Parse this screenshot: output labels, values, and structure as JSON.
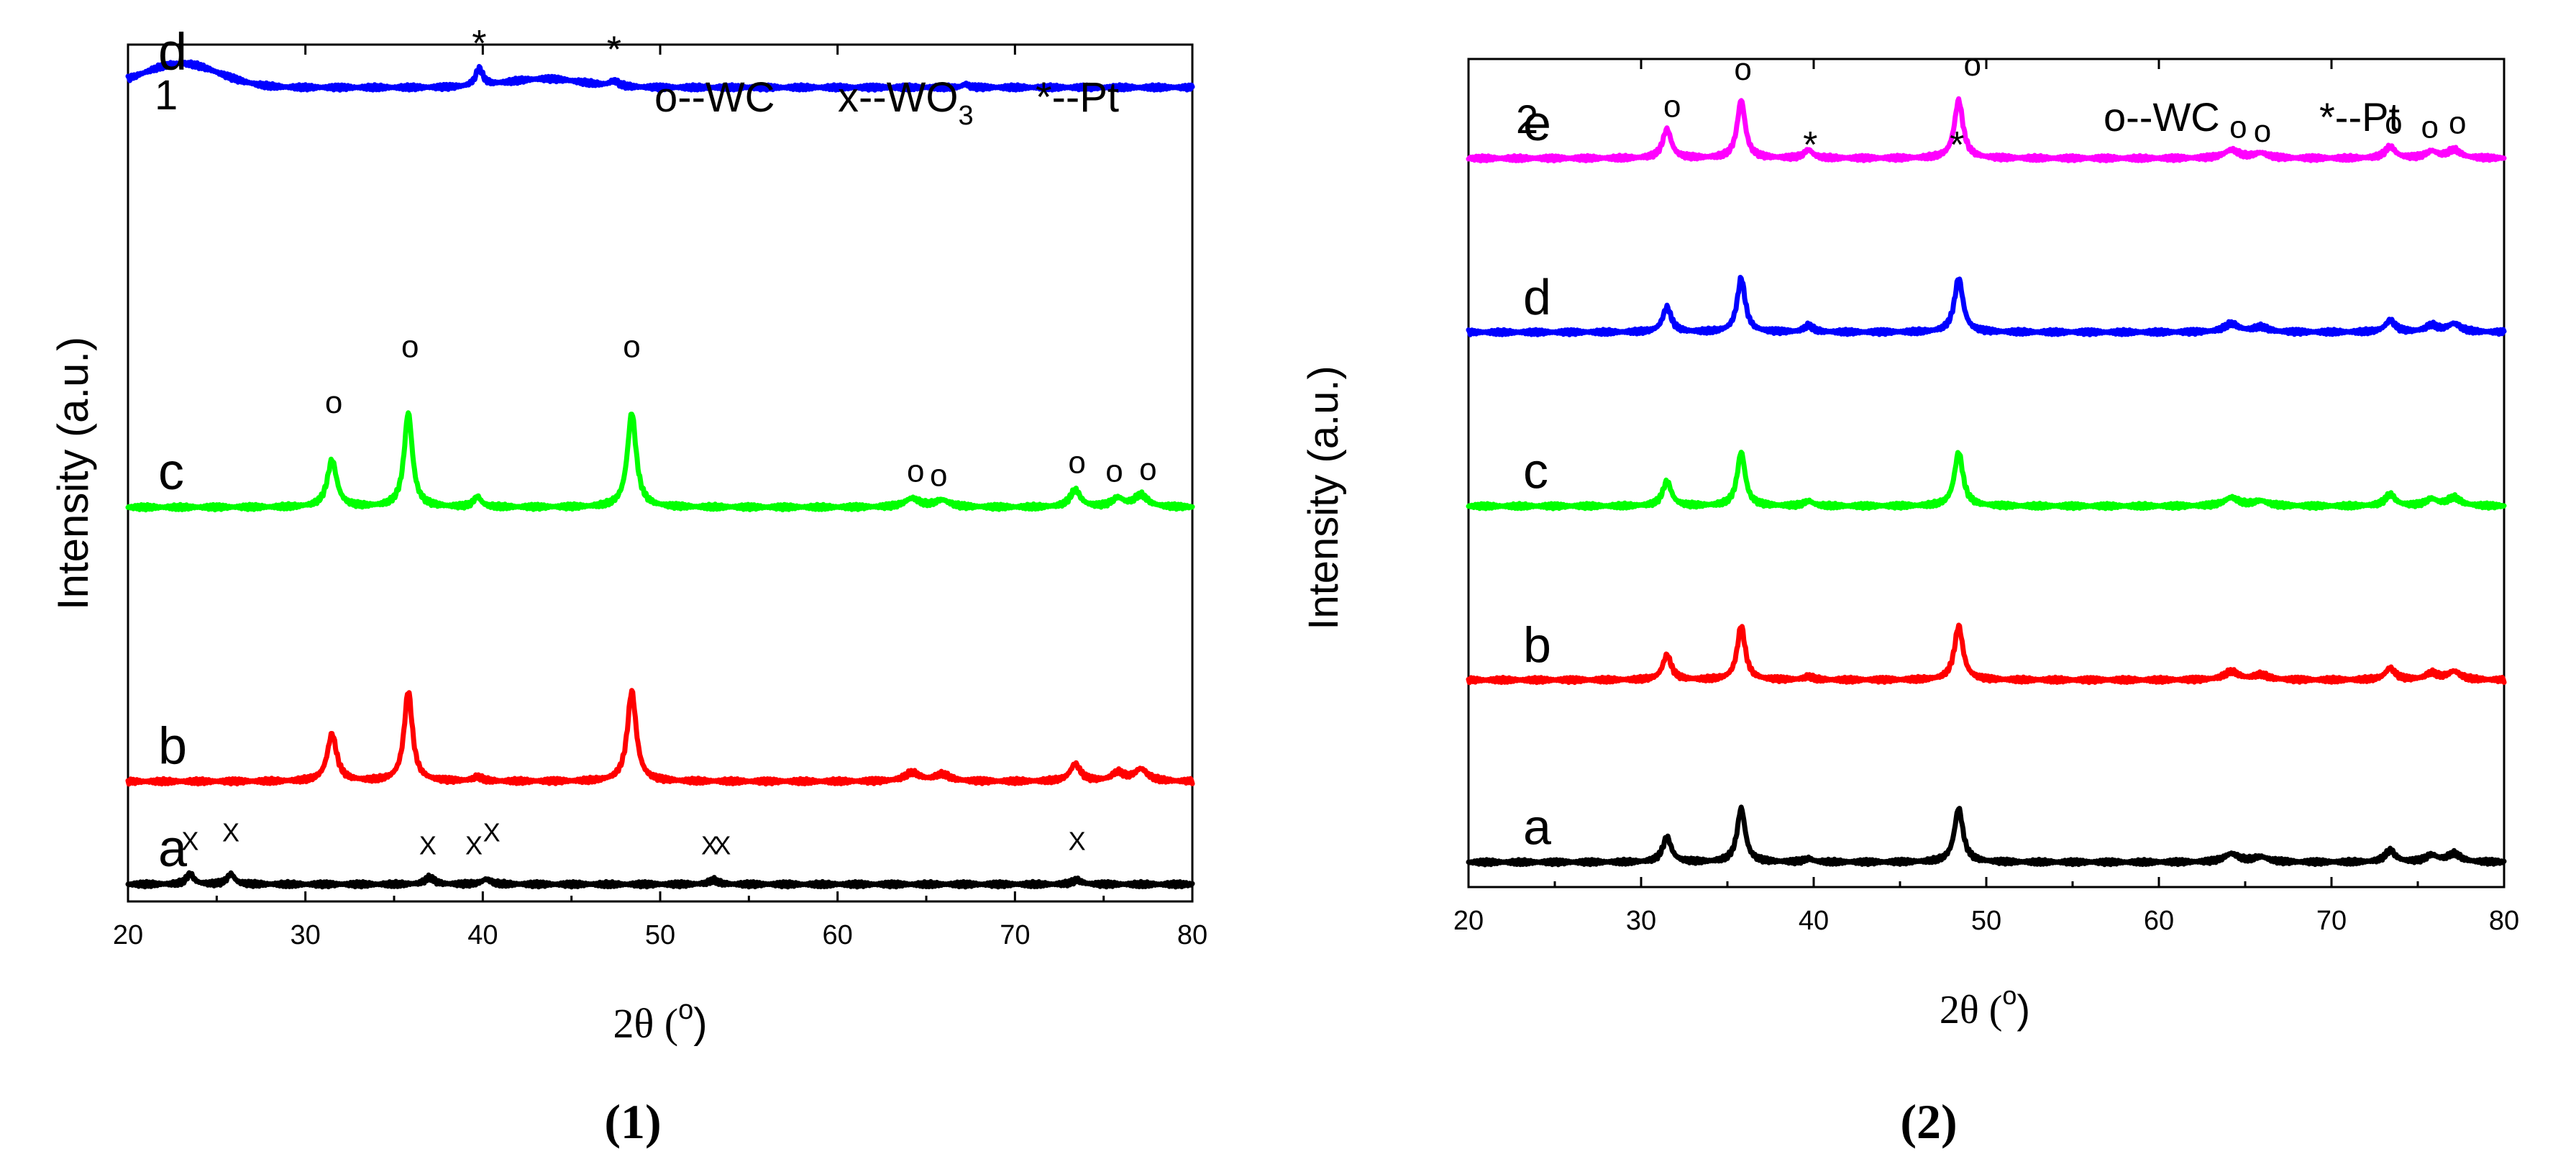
{
  "chart_data": [
    {
      "type": "line",
      "panel_label": "1",
      "caption": "(1)",
      "xlabel": "2θ (",
      "xlabel_unit": "o",
      "xlabel_close": ")",
      "ylabel": "Intensity (a.u.)",
      "xlim": [
        20,
        80
      ],
      "x_ticks": [
        20,
        30,
        40,
        50,
        60,
        70,
        80
      ],
      "y_ticks_shown": false,
      "grid": false,
      "legend_position": "top-right",
      "legend": [
        {
          "symbol": "o",
          "text": "--WC"
        },
        {
          "symbol": "x",
          "text": "--WO",
          "subscript": "3"
        },
        {
          "symbol": "*",
          "text": "--Pt"
        }
      ],
      "series": [
        {
          "name": "a",
          "color": "#000000",
          "offset": 0.02,
          "peaks": [
            [
              23.5,
              0.012,
              0.25
            ],
            [
              25.8,
              0.012,
              0.25
            ],
            [
              37,
              0.008,
              0.3
            ],
            [
              40.2,
              0.006,
              0.3
            ],
            [
              53,
              0.005,
              0.3
            ],
            [
              73.5,
              0.005,
              0.3
            ]
          ],
          "broad": [],
          "annotations": [
            {
              "x": 23.5,
              "y": 0.06,
              "text": "X"
            },
            {
              "x": 25.8,
              "y": 0.07,
              "text": "X"
            },
            {
              "x": 36.9,
              "y": 0.055,
              "text": "X"
            },
            {
              "x": 39.5,
              "y": 0.055,
              "text": "X"
            },
            {
              "x": 40.5,
              "y": 0.07,
              "text": "X"
            },
            {
              "x": 52.8,
              "y": 0.055,
              "text": "X"
            },
            {
              "x": 53.5,
              "y": 0.055,
              "text": "X"
            },
            {
              "x": 73.5,
              "y": 0.06,
              "text": "X"
            }
          ]
        },
        {
          "name": "b",
          "color": "#ff0000",
          "offset": 0.14,
          "peaks": [
            [
              31.5,
              0.055,
              0.32
            ],
            [
              35.8,
              0.105,
              0.28
            ],
            [
              39.7,
              0.005,
              0.3
            ],
            [
              48.4,
              0.105,
              0.3
            ],
            [
              64.2,
              0.01,
              0.5
            ],
            [
              65.9,
              0.008,
              0.5
            ],
            [
              73.4,
              0.02,
              0.35
            ],
            [
              75.8,
              0.01,
              0.4
            ],
            [
              77.1,
              0.014,
              0.45
            ]
          ],
          "broad": [],
          "annotations": []
        },
        {
          "name": "c",
          "color": "#00ff00",
          "offset": 0.46,
          "peaks": [
            [
              31.5,
              0.055,
              0.32
            ],
            [
              35.8,
              0.11,
              0.28
            ],
            [
              39.7,
              0.012,
              0.25
            ],
            [
              48.4,
              0.11,
              0.3
            ],
            [
              64.2,
              0.01,
              0.5
            ],
            [
              65.9,
              0.008,
              0.5
            ],
            [
              73.4,
              0.02,
              0.35
            ],
            [
              75.8,
              0.01,
              0.4
            ],
            [
              77.1,
              0.014,
              0.45
            ]
          ],
          "broad": [],
          "annotations": [
            {
              "x": 31.6,
              "y": 0.57,
              "text": "o"
            },
            {
              "x": 35.9,
              "y": 0.635,
              "text": "o"
            },
            {
              "x": 48.4,
              "y": 0.635,
              "text": "o"
            },
            {
              "x": 64.4,
              "y": 0.49,
              "text": "o"
            },
            {
              "x": 65.7,
              "y": 0.485,
              "text": "o"
            },
            {
              "x": 73.5,
              "y": 0.5,
              "text": "o"
            },
            {
              "x": 75.6,
              "y": 0.49,
              "text": "o"
            },
            {
              "x": 77.5,
              "y": 0.492,
              "text": "o"
            }
          ]
        },
        {
          "name": "d",
          "color": "#0000ff",
          "offset": 0.95,
          "peaks": [
            [
              39.8,
              0.02,
              0.25
            ],
            [
              47.4,
              0.006,
              0.3
            ],
            [
              67.2,
              0.004,
              0.2
            ]
          ],
          "broad": [
            [
              23,
              0.028,
              3.0
            ],
            [
              43.5,
              0.01,
              3.0
            ]
          ],
          "annotations": [
            {
              "x": 39.8,
              "y": 1.005,
              "text": "*"
            },
            {
              "x": 47.4,
              "y": 0.998,
              "text": "*"
            }
          ]
        }
      ]
    },
    {
      "type": "line",
      "panel_label": "2",
      "caption": "(2)",
      "xlabel": "2θ (",
      "xlabel_unit": "o",
      "xlabel_close": ")",
      "ylabel": "Intensity (a.u.)",
      "xlim": [
        20,
        80
      ],
      "x_ticks": [
        20,
        30,
        40,
        50,
        60,
        70,
        80
      ],
      "y_ticks_shown": false,
      "grid": false,
      "legend_position": "top-right",
      "legend": [
        {
          "symbol": "o",
          "text": "--WC"
        },
        {
          "symbol": "*",
          "text": "--Pt"
        }
      ],
      "series": [
        {
          "name": "a",
          "color": "#000000",
          "offset": 0.03,
          "peaks": [
            [
              31.5,
              0.03,
              0.3
            ],
            [
              35.8,
              0.065,
              0.28
            ],
            [
              39.7,
              0.004,
              0.3
            ],
            [
              48.4,
              0.065,
              0.3
            ],
            [
              64.2,
              0.01,
              0.5
            ],
            [
              65.9,
              0.006,
              0.5
            ],
            [
              73.4,
              0.014,
              0.35
            ],
            [
              75.8,
              0.008,
              0.4
            ],
            [
              77.1,
              0.01,
              0.45
            ]
          ],
          "broad": [],
          "annotations": []
        },
        {
          "name": "b",
          "color": "#ff0000",
          "offset": 0.25,
          "peaks": [
            [
              31.5,
              0.03,
              0.3
            ],
            [
              35.8,
              0.065,
              0.28
            ],
            [
              39.7,
              0.004,
              0.3
            ],
            [
              48.4,
              0.065,
              0.3
            ],
            [
              64.2,
              0.01,
              0.5
            ],
            [
              65.9,
              0.006,
              0.5
            ],
            [
              73.4,
              0.014,
              0.35
            ],
            [
              75.8,
              0.008,
              0.4
            ],
            [
              77.1,
              0.01,
              0.45
            ]
          ],
          "broad": [],
          "annotations": []
        },
        {
          "name": "c",
          "color": "#00ff00",
          "offset": 0.46,
          "peaks": [
            [
              31.5,
              0.03,
              0.3
            ],
            [
              35.8,
              0.065,
              0.28
            ],
            [
              39.7,
              0.006,
              0.3
            ],
            [
              48.4,
              0.065,
              0.3
            ],
            [
              64.2,
              0.01,
              0.5
            ],
            [
              65.9,
              0.006,
              0.5
            ],
            [
              73.4,
              0.014,
              0.35
            ],
            [
              75.8,
              0.008,
              0.4
            ],
            [
              77.1,
              0.01,
              0.45
            ]
          ],
          "broad": [],
          "annotations": []
        },
        {
          "name": "d",
          "color": "#0000ff",
          "offset": 0.67,
          "peaks": [
            [
              31.5,
              0.03,
              0.3
            ],
            [
              35.8,
              0.065,
              0.28
            ],
            [
              39.7,
              0.008,
              0.3
            ],
            [
              48.4,
              0.065,
              0.3
            ],
            [
              64.2,
              0.01,
              0.5
            ],
            [
              65.9,
              0.006,
              0.5
            ],
            [
              73.4,
              0.014,
              0.35
            ],
            [
              75.8,
              0.008,
              0.4
            ],
            [
              77.1,
              0.01,
              0.45
            ]
          ],
          "broad": [],
          "annotations": []
        },
        {
          "name": "e",
          "color": "#ff00ff",
          "offset": 0.88,
          "peaks": [
            [
              31.5,
              0.035,
              0.3
            ],
            [
              35.8,
              0.07,
              0.28
            ],
            [
              39.7,
              0.01,
              0.3
            ],
            [
              48.4,
              0.07,
              0.3
            ],
            [
              64.2,
              0.01,
              0.5
            ],
            [
              65.9,
              0.006,
              0.5
            ],
            [
              73.4,
              0.014,
              0.35
            ],
            [
              75.8,
              0.008,
              0.4
            ],
            [
              77.1,
              0.01,
              0.45
            ]
          ],
          "broad": [],
          "annotations": [
            {
              "x": 31.8,
              "y": 0.93,
              "text": "o"
            },
            {
              "x": 35.9,
              "y": 0.975,
              "text": "o"
            },
            {
              "x": 39.8,
              "y": 0.9,
              "text": "*"
            },
            {
              "x": 48.3,
              "y": 0.9,
              "text": "*"
            },
            {
              "x": 49.2,
              "y": 0.98,
              "text": "o"
            },
            {
              "x": 64.6,
              "y": 0.905,
              "text": "o"
            },
            {
              "x": 66.0,
              "y": 0.9,
              "text": "o"
            },
            {
              "x": 73.6,
              "y": 0.91,
              "text": "o"
            },
            {
              "x": 75.7,
              "y": 0.905,
              "text": "o"
            },
            {
              "x": 77.3,
              "y": 0.91,
              "text": "o"
            }
          ]
        }
      ]
    }
  ]
}
